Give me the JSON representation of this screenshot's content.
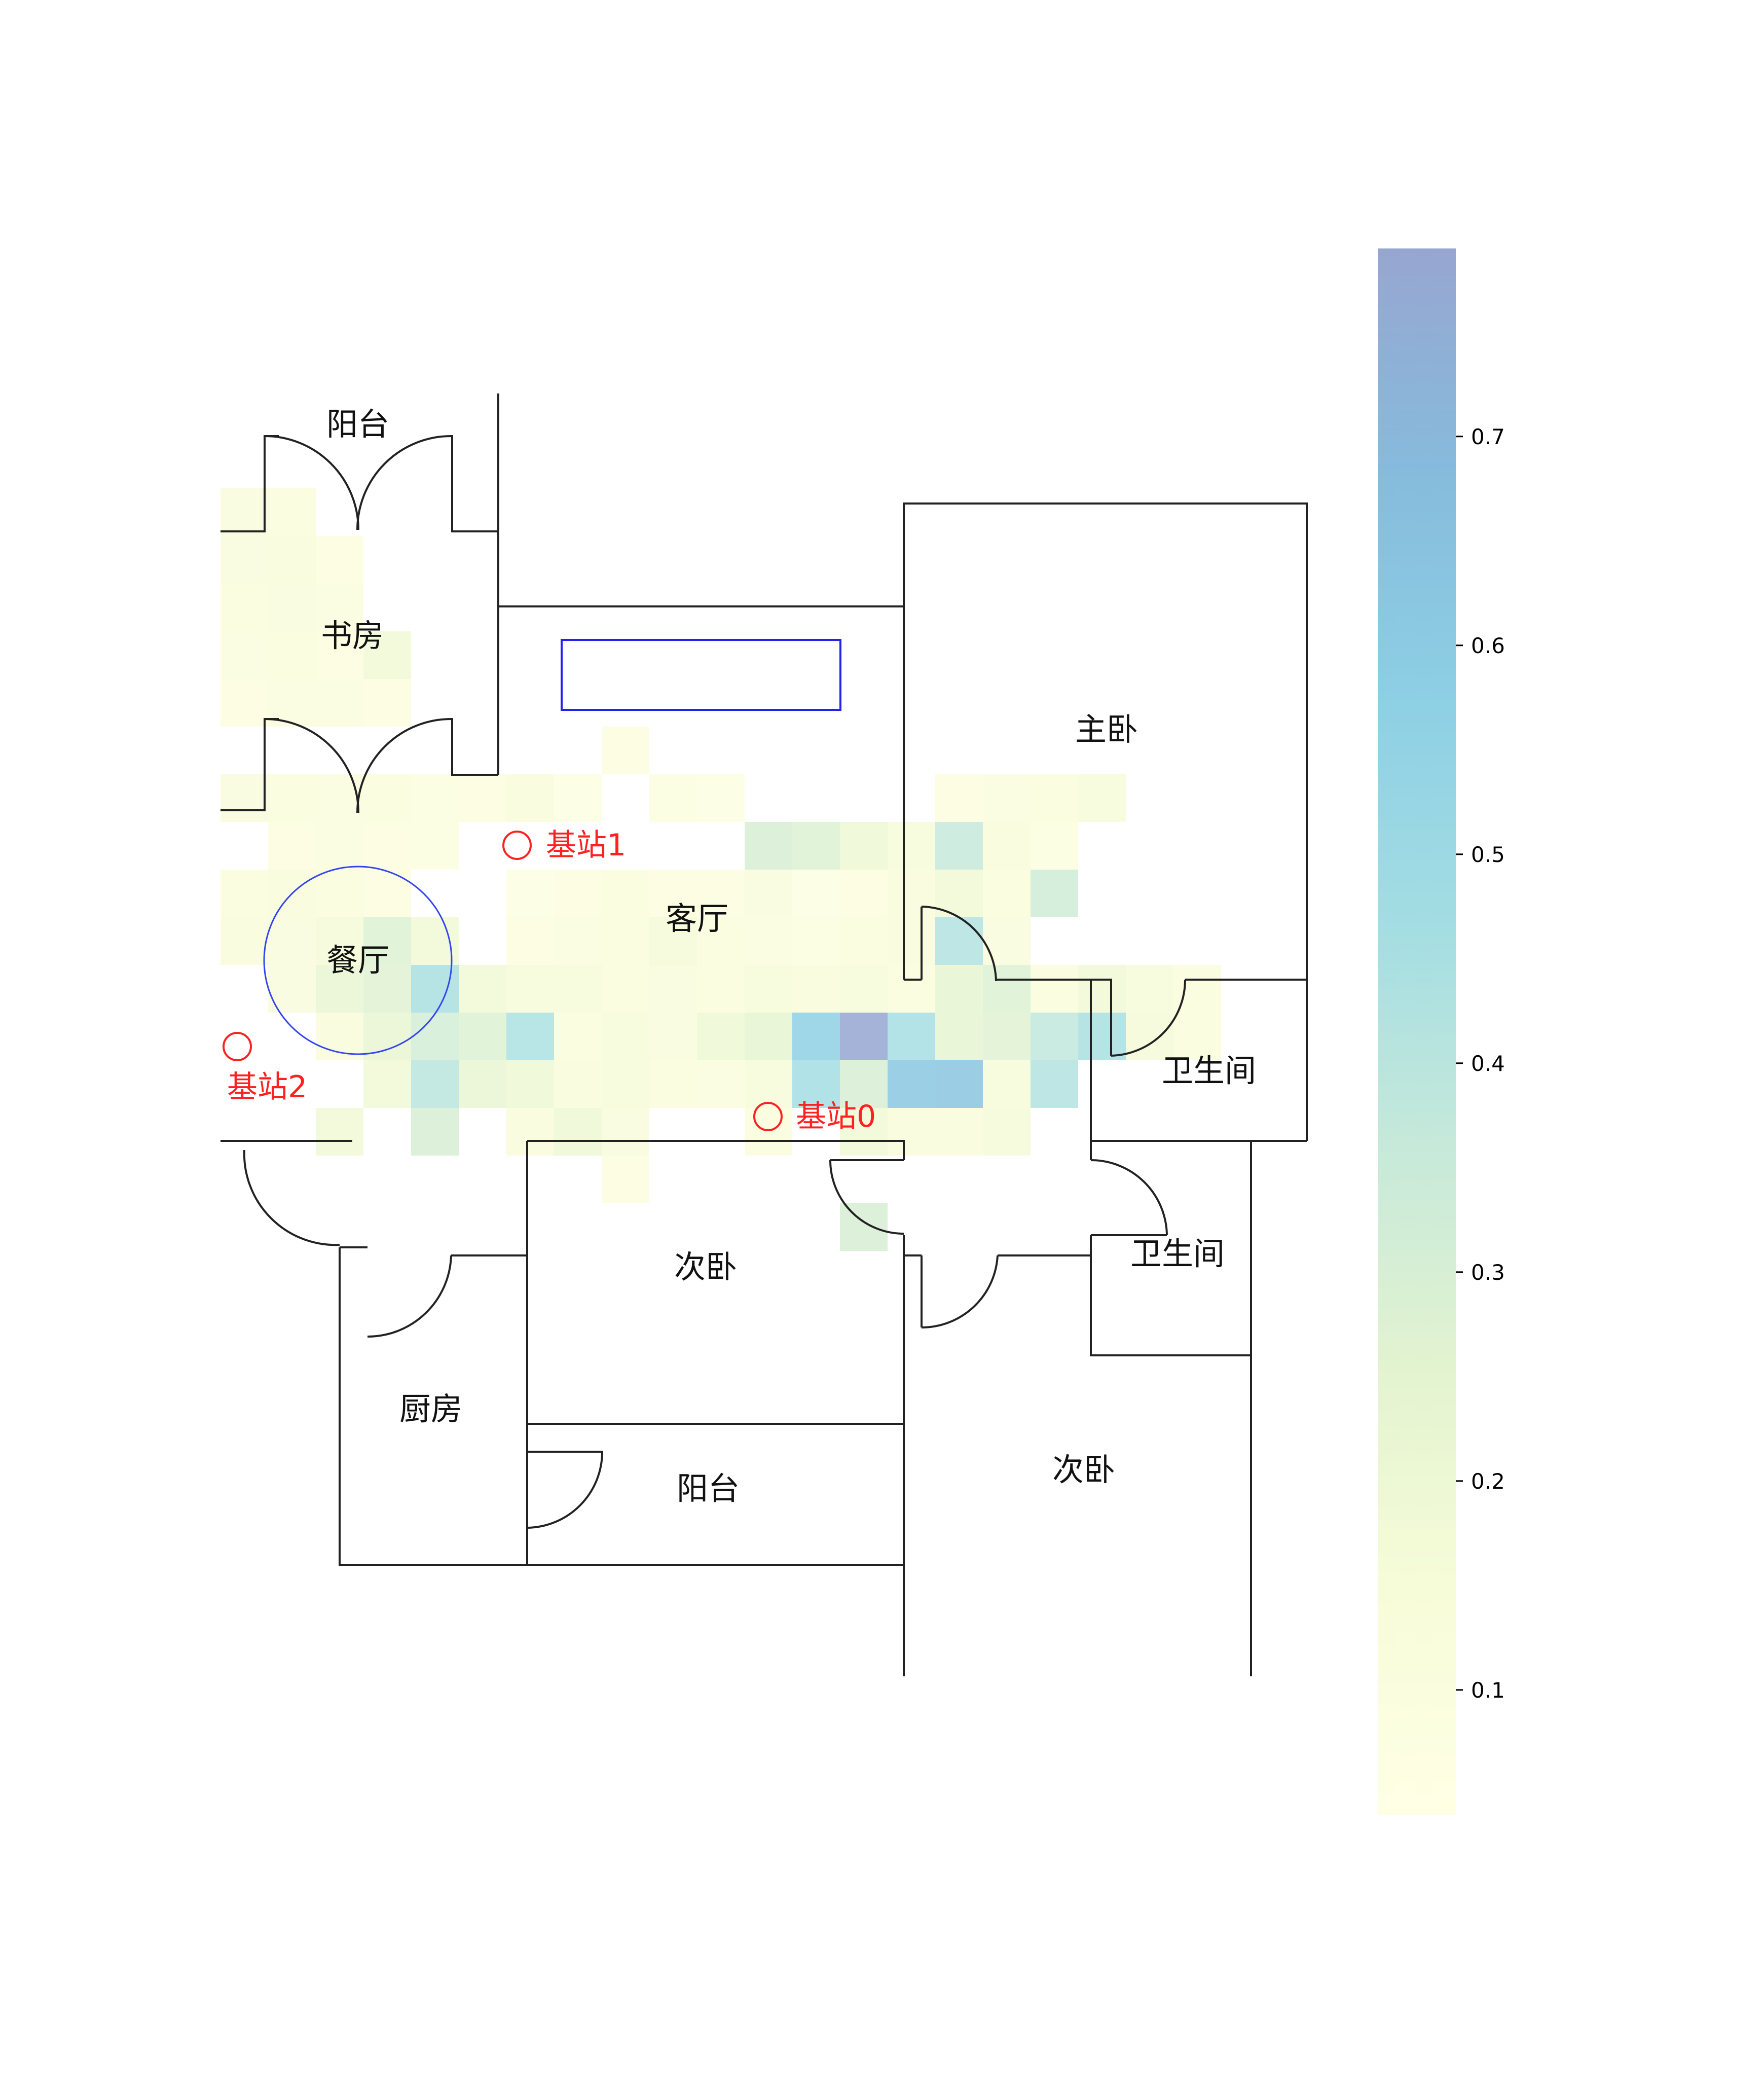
{
  "rooms": [
    {
      "key": "balcony-top",
      "label": "阳台"
    },
    {
      "key": "study",
      "label": "书房"
    },
    {
      "key": "master-bedroom",
      "label": "主卧"
    },
    {
      "key": "living-room",
      "label": "客厅"
    },
    {
      "key": "dining-room",
      "label": "餐厅"
    },
    {
      "key": "bathroom-1",
      "label": "卫生间"
    },
    {
      "key": "bathroom-2",
      "label": "卫生间"
    },
    {
      "key": "second-bedroom-1",
      "label": "次卧"
    },
    {
      "key": "kitchen",
      "label": "厨房"
    },
    {
      "key": "balcony-bottom",
      "label": "阳台"
    },
    {
      "key": "second-bedroom-2",
      "label": "次卧"
    }
  ],
  "stations": [
    {
      "key": "station-0",
      "label": "基站0"
    },
    {
      "key": "station-1",
      "label": "基站1"
    },
    {
      "key": "station-2",
      "label": "基站2"
    }
  ],
  "colorbar": {
    "ticks": [
      "0.1",
      "0.2",
      "0.3",
      "0.4",
      "0.5",
      "0.6",
      "0.7"
    ],
    "range": [
      0.04,
      0.79
    ],
    "colormap": [
      "#ffffe5",
      "#f7fcd8",
      "#e3f3d0",
      "#c6e9da",
      "#a3dde3",
      "#8dcfe4",
      "#86bbdc",
      "#97a6d1"
    ]
  },
  "heatmap": {
    "type": "heatmap",
    "cell_grid": "row,col,value",
    "cells": [
      [
        0,
        0,
        0.13
      ],
      [
        0,
        1,
        0.12
      ],
      [
        1,
        0,
        0.13
      ],
      [
        1,
        1,
        0.14
      ],
      [
        1,
        2,
        0.1
      ],
      [
        2,
        0,
        0.12
      ],
      [
        2,
        1,
        0.13
      ],
      [
        2,
        2,
        0.11
      ],
      [
        3,
        0,
        0.11
      ],
      [
        3,
        1,
        0.12
      ],
      [
        3,
        2,
        0.1
      ],
      [
        3,
        3,
        0.18
      ],
      [
        4,
        0,
        0.1
      ],
      [
        4,
        1,
        0.11
      ],
      [
        4,
        2,
        0.11
      ],
      [
        4,
        3,
        0.1
      ],
      [
        5,
        8,
        0.1
      ],
      [
        6,
        0,
        0.13
      ],
      [
        6,
        1,
        0.12
      ],
      [
        6,
        2,
        0.11
      ],
      [
        6,
        3,
        0.12
      ],
      [
        6,
        4,
        0.09
      ],
      [
        6,
        5,
        0.1
      ],
      [
        6,
        6,
        0.14
      ],
      [
        6,
        7,
        0.08
      ],
      [
        6,
        9,
        0.09
      ],
      [
        6,
        10,
        0.08
      ],
      [
        6,
        15,
        0.1
      ],
      [
        6,
        16,
        0.11
      ],
      [
        6,
        17,
        0.12
      ],
      [
        6,
        18,
        0.15
      ],
      [
        7,
        1,
        0.1
      ],
      [
        7,
        2,
        0.11
      ],
      [
        7,
        3,
        0.1
      ],
      [
        7,
        4,
        0.09
      ],
      [
        7,
        11,
        0.3
      ],
      [
        7,
        12,
        0.28
      ],
      [
        7,
        13,
        0.2
      ],
      [
        7,
        14,
        0.16
      ],
      [
        7,
        15,
        0.36
      ],
      [
        7,
        16,
        0.14
      ],
      [
        7,
        17,
        0.09
      ],
      [
        8,
        0,
        0.12
      ],
      [
        8,
        1,
        0.14
      ],
      [
        8,
        2,
        0.12
      ],
      [
        8,
        3,
        0.1
      ],
      [
        8,
        6,
        0.08
      ],
      [
        8,
        7,
        0.1
      ],
      [
        8,
        8,
        0.12
      ],
      [
        8,
        9,
        0.1
      ],
      [
        8,
        10,
        0.1
      ],
      [
        8,
        11,
        0.13
      ],
      [
        8,
        12,
        0.08
      ],
      [
        8,
        13,
        0.1
      ],
      [
        8,
        14,
        0.14
      ],
      [
        8,
        15,
        0.18
      ],
      [
        8,
        16,
        0.12
      ],
      [
        8,
        17,
        0.33
      ],
      [
        9,
        0,
        0.14
      ],
      [
        9,
        1,
        0.13
      ],
      [
        9,
        2,
        0.17
      ],
      [
        9,
        3,
        0.28
      ],
      [
        9,
        4,
        0.18
      ],
      [
        9,
        6,
        0.1
      ],
      [
        9,
        7,
        0.11
      ],
      [
        9,
        8,
        0.12
      ],
      [
        9,
        9,
        0.17
      ],
      [
        9,
        10,
        0.12
      ],
      [
        9,
        11,
        0.11
      ],
      [
        9,
        12,
        0.09
      ],
      [
        9,
        13,
        0.12
      ],
      [
        9,
        14,
        0.14
      ],
      [
        9,
        15,
        0.42
      ],
      [
        9,
        16,
        0.13
      ],
      [
        10,
        1,
        0.13
      ],
      [
        10,
        2,
        0.22
      ],
      [
        10,
        3,
        0.26
      ],
      [
        10,
        4,
        0.45
      ],
      [
        10,
        5,
        0.18
      ],
      [
        10,
        6,
        0.15
      ],
      [
        10,
        7,
        0.16
      ],
      [
        10,
        8,
        0.12
      ],
      [
        10,
        9,
        0.13
      ],
      [
        10,
        10,
        0.12
      ],
      [
        10,
        11,
        0.16
      ],
      [
        10,
        12,
        0.14
      ],
      [
        10,
        13,
        0.15
      ],
      [
        10,
        14,
        0.12
      ],
      [
        10,
        15,
        0.24
      ],
      [
        10,
        16,
        0.28
      ],
      [
        10,
        17,
        0.12
      ],
      [
        10,
        18,
        0.18
      ],
      [
        10,
        19,
        0.15
      ],
      [
        10,
        20,
        0.12
      ],
      [
        11,
        2,
        0.14
      ],
      [
        11,
        3,
        0.22
      ],
      [
        11,
        4,
        0.32
      ],
      [
        11,
        5,
        0.28
      ],
      [
        11,
        6,
        0.44
      ],
      [
        11,
        7,
        0.12
      ],
      [
        11,
        8,
        0.15
      ],
      [
        11,
        9,
        0.13
      ],
      [
        11,
        10,
        0.2
      ],
      [
        11,
        11,
        0.24
      ],
      [
        11,
        12,
        0.57
      ],
      [
        11,
        13,
        0.79
      ],
      [
        11,
        14,
        0.46
      ],
      [
        11,
        15,
        0.24
      ],
      [
        11,
        16,
        0.26
      ],
      [
        11,
        17,
        0.38
      ],
      [
        11,
        18,
        0.45
      ],
      [
        11,
        19,
        0.17
      ],
      [
        11,
        20,
        0.12
      ],
      [
        12,
        3,
        0.18
      ],
      [
        12,
        4,
        0.4
      ],
      [
        12,
        5,
        0.22
      ],
      [
        12,
        6,
        0.2
      ],
      [
        12,
        7,
        0.14
      ],
      [
        12,
        8,
        0.16
      ],
      [
        12,
        9,
        0.12
      ],
      [
        12,
        10,
        0.11
      ],
      [
        12,
        11,
        0.15
      ],
      [
        12,
        12,
        0.47
      ],
      [
        12,
        13,
        0.3
      ],
      [
        12,
        14,
        0.62
      ],
      [
        12,
        15,
        0.63
      ],
      [
        12,
        16,
        0.16
      ],
      [
        12,
        17,
        0.42
      ],
      [
        13,
        2,
        0.18
      ],
      [
        13,
        4,
        0.3
      ],
      [
        13,
        6,
        0.14
      ],
      [
        13,
        7,
        0.2
      ],
      [
        13,
        8,
        0.13
      ],
      [
        13,
        11,
        0.12
      ],
      [
        13,
        13,
        0.18
      ],
      [
        13,
        14,
        0.14
      ],
      [
        13,
        15,
        0.14
      ],
      [
        13,
        16,
        0.17
      ],
      [
        14,
        8,
        0.1
      ],
      [
        15,
        13,
        0.3
      ]
    ]
  }
}
